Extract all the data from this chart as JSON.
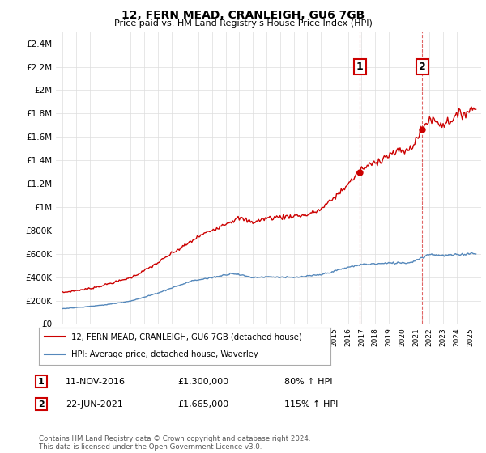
{
  "title": "12, FERN MEAD, CRANLEIGH, GU6 7GB",
  "subtitle": "Price paid vs. HM Land Registry's House Price Index (HPI)",
  "red_label": "12, FERN MEAD, CRANLEIGH, GU6 7GB (detached house)",
  "blue_label": "HPI: Average price, detached house, Waverley",
  "annotation1": {
    "num": "1",
    "date": "11-NOV-2016",
    "price": "£1,300,000",
    "pct": "80% ↑ HPI"
  },
  "annotation2": {
    "num": "2",
    "date": "22-JUN-2021",
    "price": "£1,665,000",
    "pct": "115% ↑ HPI"
  },
  "footer": "Contains HM Land Registry data © Crown copyright and database right 2024.\nThis data is licensed under the Open Government Licence v3.0.",
  "red_color": "#cc0000",
  "blue_color": "#5588bb",
  "vline_color": "#cc0000",
  "marker1_x": 2016.87,
  "marker2_x": 2021.47,
  "sale1_price": 1300000,
  "sale2_price": 1665000,
  "ylim_min": 0,
  "ylim_max": 2500000,
  "xlim_min": 1994.5,
  "xlim_max": 2025.8
}
